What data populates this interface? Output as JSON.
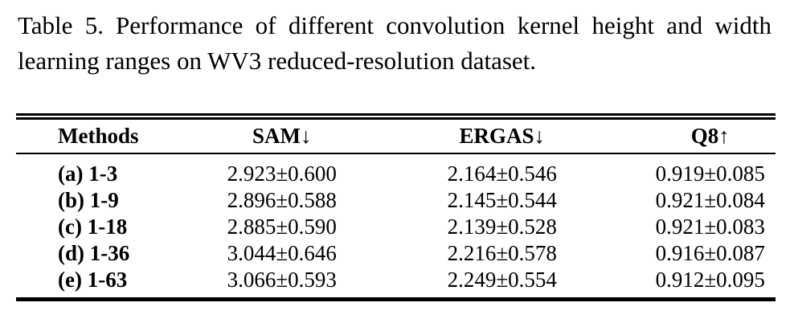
{
  "caption": {
    "label": "Table 5.",
    "text": "Performance of different convolution kernel height and width learning ranges on WV3 reduced-resolution dataset."
  },
  "table": {
    "columns": [
      "Methods",
      "SAM↓",
      "ERGAS↓",
      "Q8↑"
    ],
    "rows": [
      {
        "method": "(a) 1-3",
        "sam": "2.923±0.600",
        "ergas": "2.164±0.546",
        "q8": "0.919±0.085"
      },
      {
        "method": "(b) 1-9",
        "sam": "2.896±0.588",
        "ergas": "2.145±0.544",
        "q8": "0.921±0.084"
      },
      {
        "method": "(c) 1-18",
        "sam": "2.885±0.590",
        "ergas": "2.139±0.528",
        "q8": "0.921±0.083"
      },
      {
        "method": "(d) 1-36",
        "sam": "3.044±0.646",
        "ergas": "2.216±0.578",
        "q8": "0.916±0.087"
      },
      {
        "method": "(e) 1-63",
        "sam": "3.066±0.593",
        "ergas": "2.249±0.554",
        "q8": "0.912±0.095"
      }
    ]
  },
  "colors": {
    "text": "#000000",
    "background": "#ffffff",
    "rule": "#000000"
  }
}
